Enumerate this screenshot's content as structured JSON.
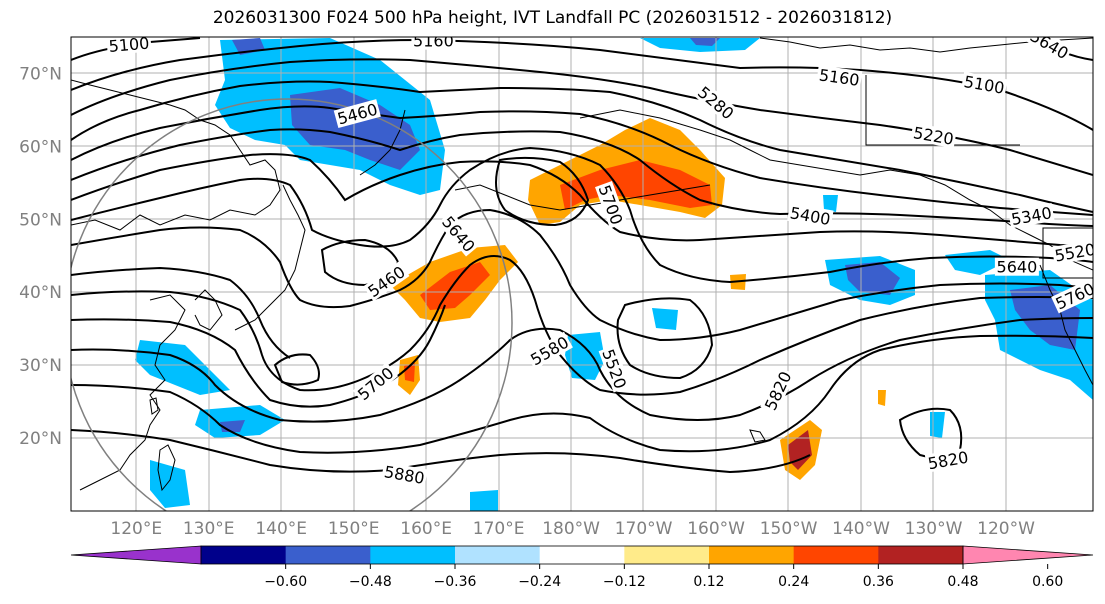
{
  "title": "2026031300 F024 500 hPa height, IVT Landfall PC (2026031512 - 2026031812)",
  "map": {
    "projection": "cylindrical",
    "lon_range": [
      111,
      252
    ],
    "lat_range": [
      10,
      75
    ],
    "lat_ticks": [
      {
        "value": 70,
        "label": "70°N"
      },
      {
        "value": 60,
        "label": "60°N"
      },
      {
        "value": 50,
        "label": "50°N"
      },
      {
        "value": 40,
        "label": "40°N"
      },
      {
        "value": 30,
        "label": "30°N"
      },
      {
        "value": 20,
        "label": "20°N"
      }
    ],
    "lon_ticks": [
      {
        "value": 120,
        "label": "120°E"
      },
      {
        "value": 130,
        "label": "130°E"
      },
      {
        "value": 140,
        "label": "140°E"
      },
      {
        "value": 150,
        "label": "150°E"
      },
      {
        "value": 160,
        "label": "160°E"
      },
      {
        "value": 170,
        "label": "170°E"
      },
      {
        "value": 180,
        "label": "180°W"
      },
      {
        "value": 190,
        "label": "170°W"
      },
      {
        "value": 200,
        "label": "160°W"
      },
      {
        "value": 210,
        "label": "150°W"
      },
      {
        "value": 220,
        "label": "140°W"
      },
      {
        "value": 230,
        "label": "130°W"
      },
      {
        "value": 240,
        "label": "120°W"
      }
    ],
    "contour_labels": [
      {
        "text": "5100",
        "lon": 119,
        "lat": 74,
        "rot": -5
      },
      {
        "text": "5160",
        "lon": 161,
        "lat": 74.5,
        "rot": 0
      },
      {
        "text": "5460",
        "lon": 150.5,
        "lat": 64.5,
        "rot": -15
      },
      {
        "text": "5280",
        "lon": 200,
        "lat": 66,
        "rot": 40
      },
      {
        "text": "5160",
        "lon": 217,
        "lat": 69.5,
        "rot": 8
      },
      {
        "text": "5100",
        "lon": 237,
        "lat": 68.5,
        "rot": 10
      },
      {
        "text": "5640",
        "lon": 246,
        "lat": 74,
        "rot": 30
      },
      {
        "text": "5220",
        "lon": 230,
        "lat": 61.5,
        "rot": 10
      },
      {
        "text": "5700",
        "lon": 185.5,
        "lat": 52,
        "rot": 70
      },
      {
        "text": "5640",
        "lon": 164.5,
        "lat": 48,
        "rot": 50
      },
      {
        "text": "5400",
        "lon": 213,
        "lat": 50.5,
        "rot": 10
      },
      {
        "text": "5340",
        "lon": 243.5,
        "lat": 50.5,
        "rot": -10
      },
      {
        "text": "5520",
        "lon": 249.5,
        "lat": 45.5,
        "rot": -10
      },
      {
        "text": "5640",
        "lon": 241.5,
        "lat": 43.5,
        "rot": 0
      },
      {
        "text": "5460",
        "lon": 154.5,
        "lat": 41.5,
        "rot": -35
      },
      {
        "text": "5760",
        "lon": 249.5,
        "lat": 39.5,
        "rot": -25
      },
      {
        "text": "5580",
        "lon": 177,
        "lat": 32,
        "rot": -30
      },
      {
        "text": "5520",
        "lon": 186,
        "lat": 29.5,
        "rot": 70
      },
      {
        "text": "5820",
        "lon": 208.5,
        "lat": 26.5,
        "rot": -65
      },
      {
        "text": "5700",
        "lon": 153,
        "lat": 27.5,
        "rot": -40
      },
      {
        "text": "5880",
        "lon": 157,
        "lat": 15,
        "rot": 10
      },
      {
        "text": "5820",
        "lon": 232,
        "lat": 17,
        "rot": -10
      }
    ]
  },
  "colorbar": {
    "ticks": [
      "−0.60",
      "−0.48",
      "−0.36",
      "−0.24",
      "−0.12",
      "0.12",
      "0.24",
      "0.36",
      "0.48",
      "0.60"
    ],
    "colors": [
      "#9932cc",
      "#00008b",
      "#3a5fcd",
      "#00bfff",
      "#b0e2ff",
      "#ffffff",
      "#ffeb8a",
      "#ffa500",
      "#ff4500",
      "#b22222",
      "#ff86b0"
    ]
  }
}
